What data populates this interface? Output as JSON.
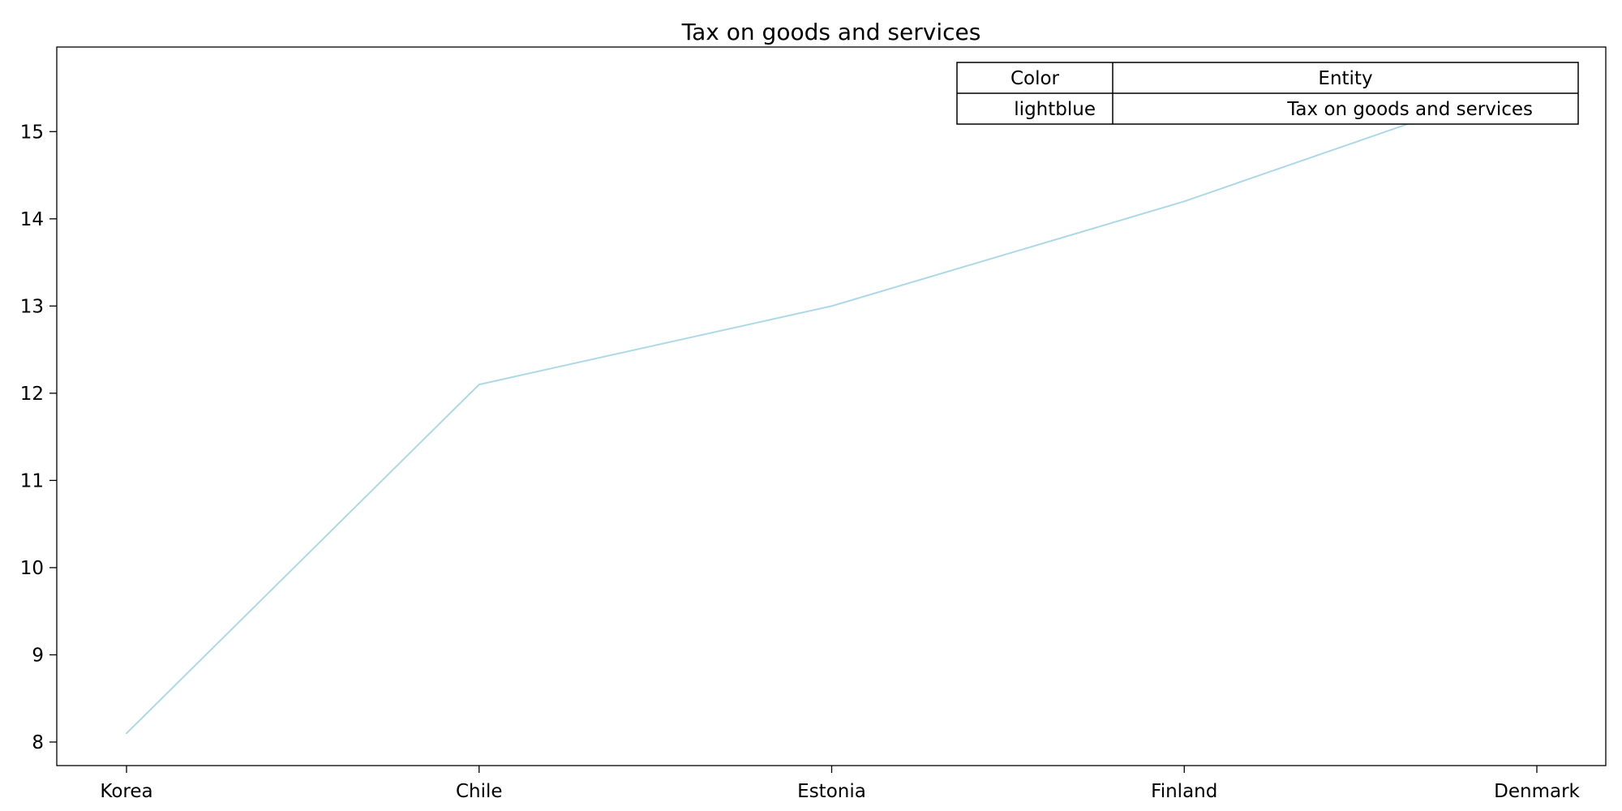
{
  "chart_data": {
    "type": "line",
    "title": "Tax on goods and services",
    "categories": [
      "Korea",
      "Chile",
      "Estonia",
      "Finland",
      "Denmark"
    ],
    "series": [
      {
        "values": [
          8.1,
          12.1,
          13.0,
          14.2,
          15.6
        ],
        "color": "#add8e6"
      }
    ],
    "yticks": [
      8,
      9,
      10,
      11,
      12,
      13,
      14,
      15
    ],
    "ylim": [
      7.73,
      15.97
    ],
    "grid": false,
    "legend_table": {
      "placement": "top-right",
      "headers": [
        "Color",
        "Entity"
      ],
      "rows": [
        [
          "lightblue",
          "Tax on goods and services"
        ]
      ]
    }
  }
}
